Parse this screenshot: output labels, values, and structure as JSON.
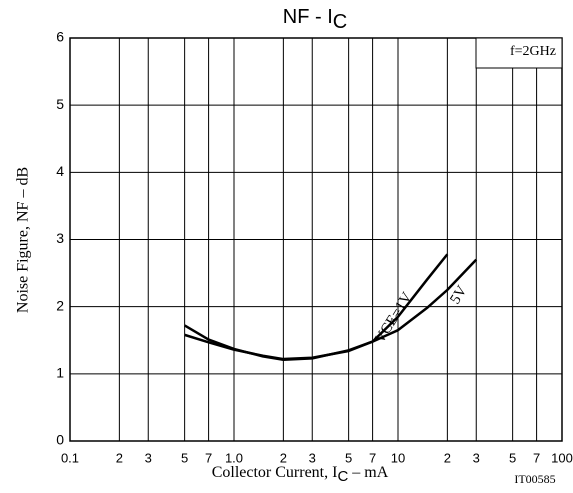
{
  "chart_data": {
    "type": "line",
    "title": [
      "NF - I",
      "C"
    ],
    "x_label": [
      "Collector Current, I",
      "C",
      " –  mA"
    ],
    "y_label": "Noise Figure,  NF  –  dB",
    "annotations": [
      "f=2GHz",
      "IT00585"
    ],
    "xscale": "log",
    "xlim": [
      0.1,
      100
    ],
    "ylim": [
      0,
      6
    ],
    "xticks": [
      0.1,
      {
        "value": 0.2,
        "label": "2"
      },
      {
        "value": 0.3,
        "label": "3"
      },
      {
        "value": 0.5,
        "label": "5"
      },
      {
        "value": 0.7,
        "label": "7"
      },
      {
        "value": 1,
        "label": "1.0"
      },
      {
        "value": 2,
        "label": "2"
      },
      {
        "value": 3,
        "label": "3"
      },
      {
        "value": 5,
        "label": "5"
      },
      {
        "value": 7,
        "label": "7"
      },
      10,
      {
        "value": 20,
        "label": "2"
      },
      {
        "value": 30,
        "label": "3"
      },
      {
        "value": 50,
        "label": "5"
      },
      {
        "value": 70,
        "label": "7"
      },
      100
    ],
    "yticks": [
      0,
      1,
      2,
      3,
      4,
      5,
      6
    ],
    "grid": true,
    "series": [
      {
        "name": "VCE=1V",
        "color": "#000000",
        "x": [
          0.5,
          0.7,
          1,
          1.5,
          2,
          3,
          5,
          7,
          10,
          15,
          20
        ],
        "values": [
          1.58,
          1.47,
          1.36,
          1.27,
          1.22,
          1.24,
          1.34,
          1.48,
          1.85,
          2.4,
          2.78
        ]
      },
      {
        "name": "5V",
        "color": "#000000",
        "x": [
          0.5,
          0.7,
          1,
          1.5,
          2,
          3,
          5,
          7,
          10,
          15,
          20,
          30
        ],
        "values": [
          1.72,
          1.51,
          1.37,
          1.26,
          1.21,
          1.23,
          1.35,
          1.48,
          1.65,
          1.98,
          2.25,
          2.7
        ]
      }
    ]
  }
}
